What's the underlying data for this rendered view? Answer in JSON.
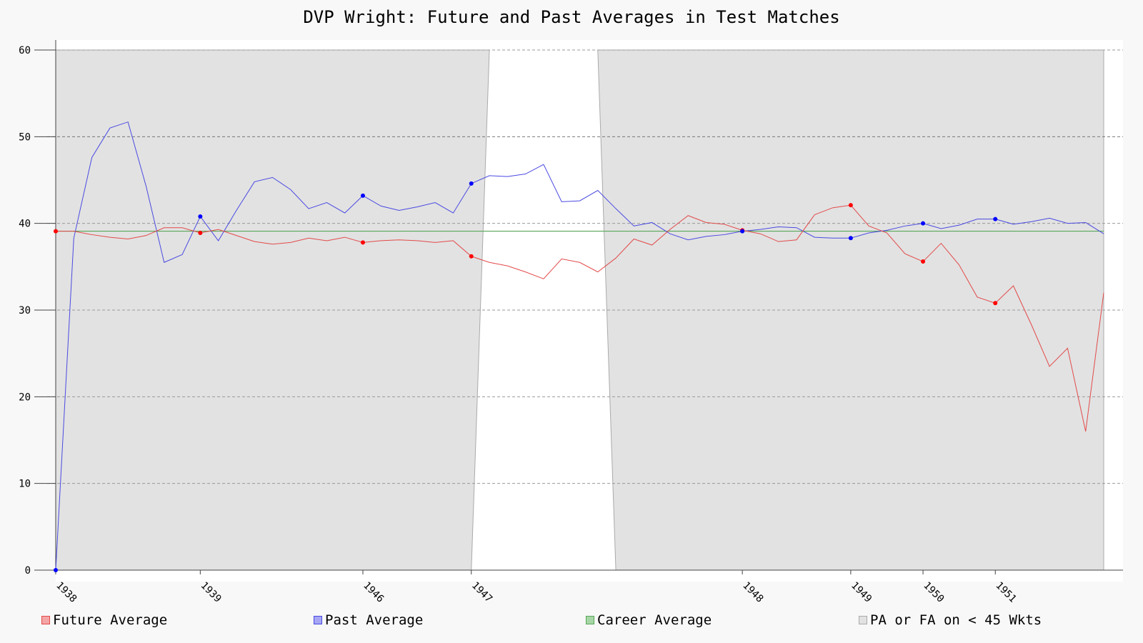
{
  "chart_data": {
    "type": "line",
    "title": "DVP Wright: Future and Past Averages in Test Matches",
    "xlabel": "",
    "ylabel": "",
    "ylim": [
      0,
      60
    ],
    "yticks": [
      0,
      10,
      20,
      30,
      40,
      50,
      60
    ],
    "grid": true,
    "legend_position": "bottom",
    "match_count": 59,
    "xtick_labels": [
      {
        "match": 0,
        "label": "1938"
      },
      {
        "match": 8,
        "label": "1939"
      },
      {
        "match": 17,
        "label": "1946"
      },
      {
        "match": 23,
        "label": "1947"
      },
      {
        "match": 38,
        "label": "1948"
      },
      {
        "match": 44,
        "label": "1949"
      },
      {
        "match": 48,
        "label": "1950"
      },
      {
        "match": 52,
        "label": "1951"
      }
    ],
    "series": [
      {
        "name": "Future Average",
        "color": "#e34a4a",
        "values": [
          39.1,
          39.1,
          38.7,
          38.4,
          38.2,
          38.6,
          39.5,
          39.5,
          38.9,
          39.3,
          38.6,
          37.9,
          37.6,
          37.8,
          38.3,
          38.0,
          38.4,
          37.8,
          38.0,
          38.1,
          38.0,
          37.8,
          38.0,
          36.2,
          35.5,
          35.1,
          34.4,
          33.6,
          35.9,
          35.5,
          34.4,
          36.0,
          38.2,
          37.5,
          39.3,
          40.9,
          40.1,
          39.9,
          39.2,
          38.8,
          37.9,
          38.1,
          41.0,
          41.8,
          42.1,
          39.7,
          38.9,
          36.5,
          35.6,
          37.7,
          35.2,
          31.5,
          30.8,
          32.8,
          28.3,
          23.5,
          25.6,
          16.0,
          32.0
        ],
        "markers": [
          0,
          8,
          17,
          23,
          38,
          44,
          48,
          52
        ]
      },
      {
        "name": "Past Average",
        "color": "#4a4ae3",
        "values": [
          0.0,
          38.3,
          47.6,
          51.0,
          51.7,
          44.3,
          35.5,
          36.4,
          40.8,
          38.0,
          41.5,
          44.8,
          45.3,
          43.9,
          41.7,
          42.4,
          41.2,
          43.2,
          42.0,
          41.5,
          41.9,
          42.4,
          41.2,
          44.6,
          45.5,
          45.4,
          45.7,
          46.8,
          42.5,
          42.6,
          43.8,
          41.7,
          39.7,
          40.1,
          38.8,
          38.1,
          38.5,
          38.7,
          39.1,
          39.3,
          39.6,
          39.5,
          38.4,
          38.3,
          38.3,
          38.9,
          39.2,
          39.7,
          40.0,
          39.4,
          39.8,
          40.5,
          40.5,
          39.9,
          40.2,
          40.6,
          40.0,
          40.1,
          38.8
        ],
        "markers": [
          0,
          8,
          17,
          23,
          38,
          44,
          48,
          52
        ]
      },
      {
        "name": "Career Average",
        "color": "#59a659",
        "values": [
          39.1,
          39.1
        ]
      }
    ],
    "shaded_region": {
      "name": "PA or FA on < 45 Wkts",
      "color": "#e2e2e2",
      "unshaded_from_match": 24,
      "unshaded_to_match": 30
    }
  }
}
